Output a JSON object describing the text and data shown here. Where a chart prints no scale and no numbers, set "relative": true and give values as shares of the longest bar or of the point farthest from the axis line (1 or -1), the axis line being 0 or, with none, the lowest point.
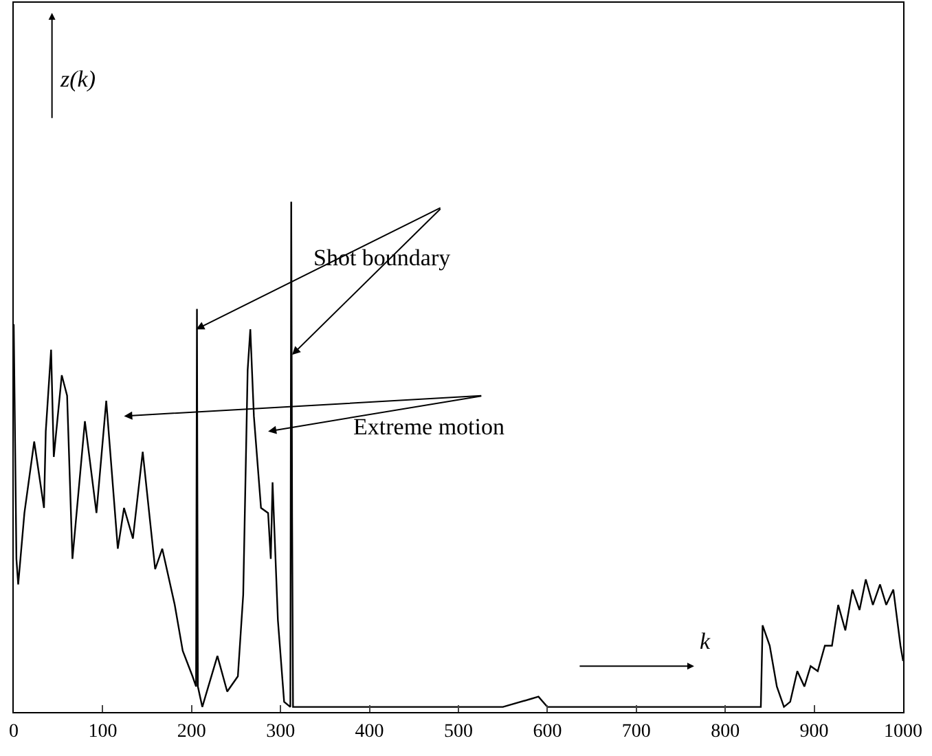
{
  "chart_data": {
    "type": "line",
    "relative": true,
    "xlabel": "k",
    "ylabel": "z(k)",
    "x": [
      0,
      3,
      5,
      12,
      23,
      34,
      36,
      42,
      45,
      54,
      60,
      66,
      80,
      93,
      104,
      117,
      124,
      134,
      145,
      159,
      167,
      181,
      190,
      201,
      205,
      206,
      207,
      212,
      229,
      240,
      252,
      258,
      263,
      266,
      270,
      278,
      286,
      289,
      291,
      297,
      304,
      311,
      312,
      313,
      314,
      350,
      400,
      450,
      500,
      550,
      590,
      600,
      650,
      700,
      750,
      800,
      840,
      842,
      850,
      858,
      866,
      873,
      881,
      889,
      896,
      904,
      912,
      920,
      927,
      935,
      943,
      951,
      958,
      966,
      974,
      981,
      989,
      997,
      1000
    ],
    "series": [
      {
        "color": "#000000",
        "values": [
          0.76,
          0.3,
          0.25,
          0.39,
          0.53,
          0.4,
          0.55,
          0.71,
          0.5,
          0.66,
          0.62,
          0.3,
          0.57,
          0.39,
          0.61,
          0.32,
          0.4,
          0.34,
          0.51,
          0.28,
          0.32,
          0.21,
          0.12,
          0.07,
          0.05,
          0.79,
          0.05,
          0.01,
          0.11,
          0.04,
          0.07,
          0.23,
          0.67,
          0.75,
          0.58,
          0.4,
          0.39,
          0.3,
          0.45,
          0.18,
          0.02,
          0.01,
          1,
          0.38,
          0.01,
          0.01,
          0.01,
          0.01,
          0.01,
          0.01,
          0.03,
          0.01,
          0.01,
          0.01,
          0.01,
          0.01,
          0.01,
          0.17,
          0.13,
          0.05,
          0.01,
          0.02,
          0.08,
          0.05,
          0.09,
          0.08,
          0.13,
          0.13,
          0.21,
          0.16,
          0.24,
          0.2,
          0.26,
          0.21,
          0.25,
          0.21,
          0.24,
          0.13,
          0.1
        ]
      }
    ],
    "xlim": [
      0,
      1000
    ],
    "xticks": [
      0,
      100,
      200,
      300,
      400,
      500,
      600,
      700,
      800,
      900,
      1000
    ],
    "annotations": [
      "Shot boundary",
      "Extreme motion"
    ],
    "marker": "none",
    "line_style": "solid"
  }
}
